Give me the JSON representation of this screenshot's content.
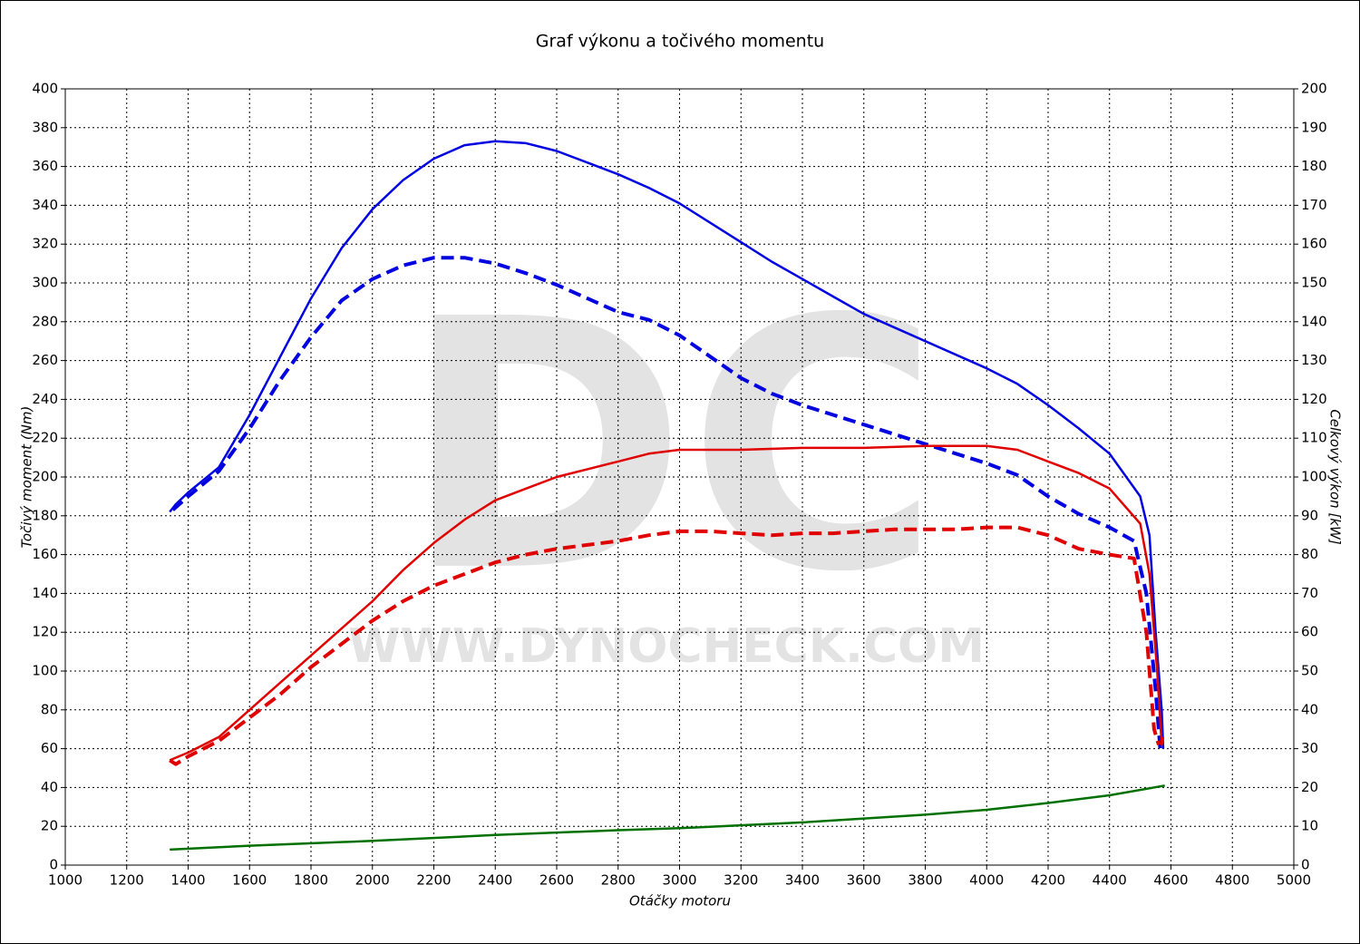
{
  "chart_data": {
    "type": "line",
    "title": "Graf výkonu a točivého momentu",
    "x_label": "Otáčky motoru",
    "y_label": "Točivý moment (Nm)",
    "y2_label": "Celkový výkon [kW]",
    "watermark": "DC",
    "watermark_url": "WWW.DYNOCHECK.COM",
    "xlim": [
      1000,
      5000
    ],
    "xticks": [
      1000,
      1200,
      1400,
      1600,
      1800,
      2000,
      2200,
      2400,
      2600,
      2800,
      3000,
      3200,
      3400,
      3600,
      3800,
      4000,
      4200,
      4400,
      4600,
      4800,
      5000
    ],
    "ylim": [
      0,
      400
    ],
    "yticks": [
      0,
      20,
      40,
      60,
      80,
      100,
      120,
      140,
      160,
      180,
      200,
      220,
      240,
      260,
      280,
      300,
      320,
      340,
      360,
      380,
      400
    ],
    "y2lim": [
      0,
      200
    ],
    "y2ticks": [
      0,
      10,
      20,
      30,
      40,
      50,
      60,
      70,
      80,
      90,
      100,
      110,
      120,
      130,
      140,
      150,
      160,
      170,
      180,
      190,
      200
    ],
    "grid": true,
    "series": [
      {
        "color": "#0000e0",
        "dash": false,
        "axis": "y1",
        "x": [
          1340,
          1360,
          1400,
          1500,
          1600,
          1700,
          1800,
          1900,
          2000,
          2100,
          2200,
          2300,
          2400,
          2500,
          2600,
          2700,
          2800,
          2900,
          3000,
          3100,
          3200,
          3300,
          3400,
          3500,
          3600,
          3700,
          3800,
          3900,
          4000,
          4100,
          4200,
          4300,
          4400,
          4500,
          4530,
          4550,
          4570,
          4575
        ],
        "values": [
          182,
          186,
          192,
          205,
          232,
          262,
          292,
          318,
          338,
          353,
          364,
          371,
          373,
          372,
          368,
          362,
          356,
          349,
          341,
          331,
          321,
          311,
          302,
          293,
          284,
          277,
          270,
          263,
          256,
          248,
          237,
          225,
          212,
          190,
          170,
          120,
          80,
          60
        ]
      },
      {
        "color": "#0000e0",
        "dash": true,
        "axis": "y1",
        "x": [
          1350,
          1400,
          1500,
          1600,
          1700,
          1800,
          1900,
          2000,
          2100,
          2200,
          2300,
          2400,
          2500,
          2600,
          2700,
          2800,
          2900,
          3000,
          3100,
          3200,
          3300,
          3400,
          3500,
          3600,
          3700,
          3800,
          3900,
          4000,
          4100,
          4200,
          4300,
          4400,
          4480,
          4520,
          4550,
          4565
        ],
        "values": [
          183,
          190,
          203,
          225,
          250,
          272,
          291,
          302,
          309,
          313,
          313,
          310,
          305,
          299,
          292,
          285,
          281,
          273,
          262,
          251,
          243,
          237,
          232,
          227,
          222,
          217,
          212,
          207,
          201,
          190,
          181,
          174,
          167,
          140,
          90,
          60
        ]
      },
      {
        "color": "#e00000",
        "dash": false,
        "axis": "y2",
        "x": [
          1340,
          1400,
          1500,
          1600,
          1700,
          1800,
          1900,
          2000,
          2100,
          2200,
          2300,
          2400,
          2500,
          2600,
          2700,
          2800,
          2900,
          3000,
          3200,
          3400,
          3600,
          3800,
          4000,
          4100,
          4200,
          4300,
          4400,
          4500,
          4530,
          4555,
          4570,
          4575
        ],
        "values": [
          27,
          29,
          33,
          40,
          47,
          54,
          61,
          68,
          76,
          83,
          89,
          94,
          97,
          100,
          102,
          104,
          106,
          107,
          107,
          107.5,
          107.5,
          108,
          108,
          107,
          104,
          101,
          97,
          88,
          75,
          50,
          31,
          33
        ]
      },
      {
        "color": "#e00000",
        "dash": true,
        "axis": "y2",
        "x": [
          1340,
          1360,
          1400,
          1500,
          1600,
          1700,
          1800,
          1900,
          2000,
          2100,
          2200,
          2300,
          2400,
          2500,
          2600,
          2700,
          2800,
          2900,
          3000,
          3100,
          3200,
          3300,
          3400,
          3500,
          3600,
          3700,
          3800,
          3900,
          4000,
          4100,
          4200,
          4300,
          4400,
          4480,
          4520,
          4545,
          4560
        ],
        "values": [
          27,
          26,
          28,
          32,
          38,
          44,
          51,
          57,
          63,
          68,
          72,
          75,
          78,
          80,
          81.5,
          82.5,
          83.5,
          85,
          86,
          86,
          85.5,
          85,
          85.5,
          85.5,
          86,
          86.5,
          86.5,
          86.5,
          87,
          87,
          85,
          81.5,
          80,
          79,
          60,
          35,
          31
        ]
      },
      {
        "color": "#007000",
        "dash": false,
        "axis": "y1",
        "x": [
          1340,
          1600,
          2000,
          2400,
          2800,
          3000,
          3400,
          3800,
          4000,
          4200,
          4400,
          4580
        ],
        "values": [
          8,
          10,
          12.5,
          15.5,
          18,
          19,
          22,
          26,
          28.5,
          32,
          36,
          41
        ]
      }
    ]
  }
}
